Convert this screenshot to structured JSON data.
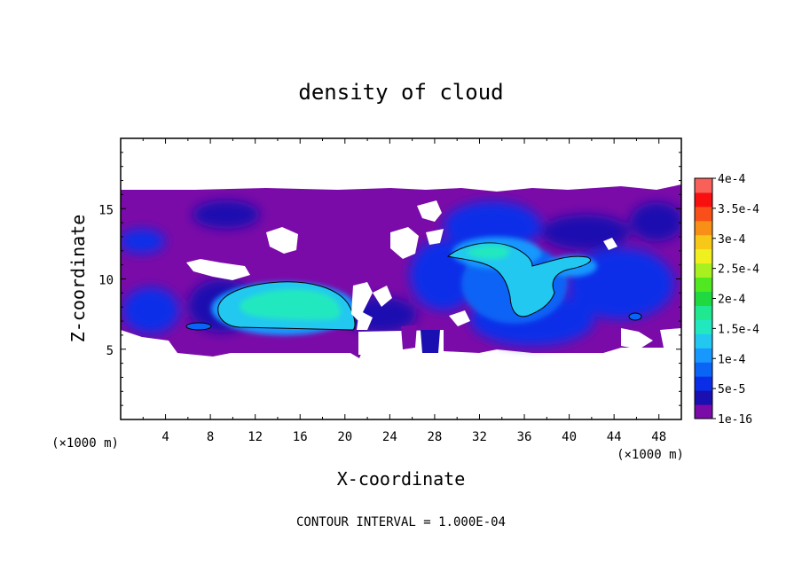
{
  "chart_data": {
    "type": "heatmap",
    "title": "density of cloud",
    "xlabel": "X-coordinate",
    "ylabel": "Z-coordinate",
    "x_unit": "(×1000 m)",
    "z_unit": "(×1000 m)",
    "xlim": [
      0,
      50
    ],
    "ylim": [
      0,
      20
    ],
    "x_ticks": [
      4,
      8,
      12,
      16,
      20,
      24,
      28,
      32,
      36,
      40,
      44,
      48
    ],
    "y_ticks": [
      5,
      10,
      15
    ],
    "colorbar": {
      "labels": [
        "1e-16",
        "5e-5",
        "1e-4",
        "1.5e-4",
        "2e-4",
        "2.5e-4",
        "3e-4",
        "3.5e-4",
        "4e-4"
      ],
      "colors": [
        "#7a0ba8",
        "#1a0fb0",
        "#0a2ee8",
        "#0a64f5",
        "#1898ff",
        "#22c8f0",
        "#22e8c0",
        "#20e890",
        "#20d840",
        "#50e820",
        "#a8f020",
        "#f0f020",
        "#f8c818",
        "#f89018",
        "#f85018",
        "#f81010",
        "#f86058"
      ]
    },
    "footer": "CONTOUR INTERVAL = 1.000E-04",
    "cloud_regions": [
      {
        "x": [
          0,
          50
        ],
        "z": [
          5.0,
          16.5
        ],
        "value": 5e-06
      },
      {
        "x": [
          7.5,
          21.0
        ],
        "z": [
          6.3,
          10.0
        ],
        "value": 0.00013
      },
      {
        "x": [
          29.5,
          41.5
        ],
        "z": [
          6.0,
          12.5
        ],
        "value": 0.00011
      },
      {
        "x": [
          0,
          5.0
        ],
        "z": [
          11.0,
          14.0
        ],
        "value": 5e-05
      },
      {
        "x": [
          5.0,
          7.5
        ],
        "z": [
          6.0,
          6.8
        ],
        "value": 0.0001
      }
    ]
  }
}
